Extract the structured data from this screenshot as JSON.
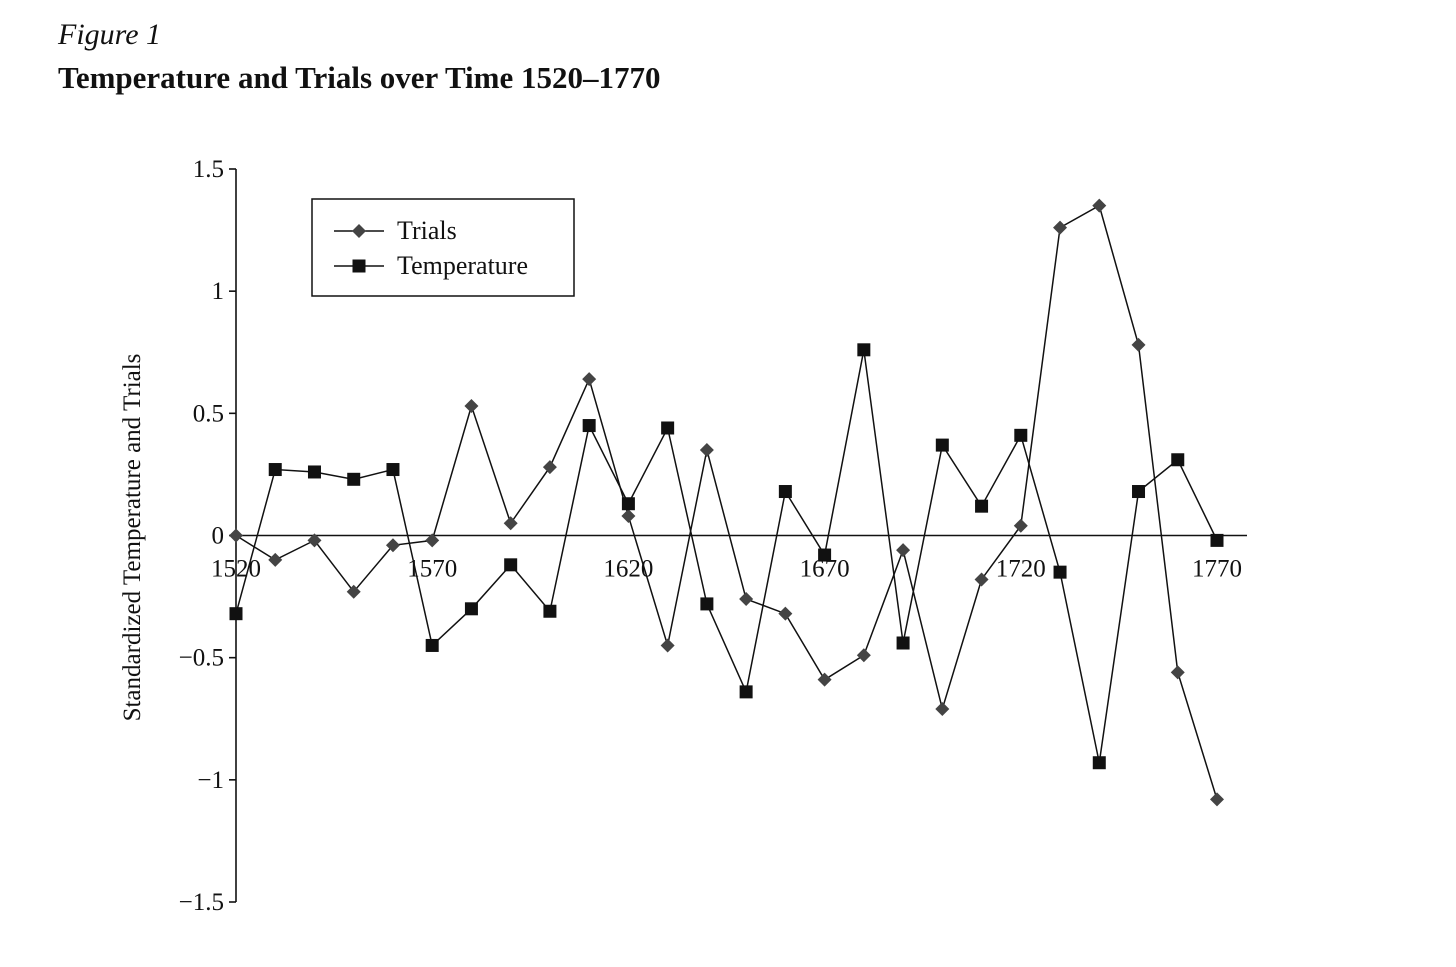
{
  "figure": {
    "label": "Figure 1",
    "title": "Temperature and Trials over Time 1520–1770"
  },
  "chart_data": {
    "type": "line",
    "title": "Temperature and Trials over Time 1520–1770",
    "xlabel": "",
    "ylabel": "Standardized Temperature and Trials",
    "xlim": [
      1520,
      1770
    ],
    "ylim": [
      -1.5,
      1.5
    ],
    "x_ticks": [
      1520,
      1570,
      1620,
      1670,
      1720,
      1770
    ],
    "y_ticks": [
      1.5,
      1,
      0.5,
      0,
      -0.5,
      -1,
      -1.5
    ],
    "y_tick_labels": [
      "1.5",
      "1",
      "0.5",
      "0",
      "−0.5",
      "−1",
      "−1.5"
    ],
    "x": [
      1520,
      1530,
      1540,
      1550,
      1560,
      1570,
      1580,
      1590,
      1600,
      1610,
      1620,
      1630,
      1640,
      1650,
      1660,
      1670,
      1680,
      1690,
      1700,
      1710,
      1720,
      1730,
      1740,
      1750,
      1760,
      1770
    ],
    "series": [
      {
        "name": "Trials",
        "marker": "diamond",
        "color": "#444444",
        "values": [
          0.0,
          -0.1,
          -0.02,
          -0.23,
          -0.04,
          -0.02,
          0.53,
          0.05,
          0.28,
          0.64,
          0.08,
          -0.45,
          0.35,
          -0.26,
          -0.32,
          -0.59,
          -0.49,
          -0.06,
          -0.71,
          -0.18,
          0.04,
          1.26,
          1.35,
          0.78,
          -0.56,
          -1.08
        ]
      },
      {
        "name": "Temperature",
        "marker": "square",
        "color": "#111111",
        "values": [
          -0.32,
          0.27,
          0.26,
          0.23,
          0.27,
          -0.45,
          -0.3,
          -0.12,
          -0.31,
          0.45,
          0.13,
          0.44,
          -0.28,
          -0.64,
          0.18,
          -0.08,
          0.76,
          -0.44,
          0.37,
          0.12,
          0.41,
          -0.15,
          -0.93,
          0.18,
          0.31,
          -0.02
        ]
      }
    ],
    "legend": {
      "position": "top-left"
    },
    "grid": false
  }
}
